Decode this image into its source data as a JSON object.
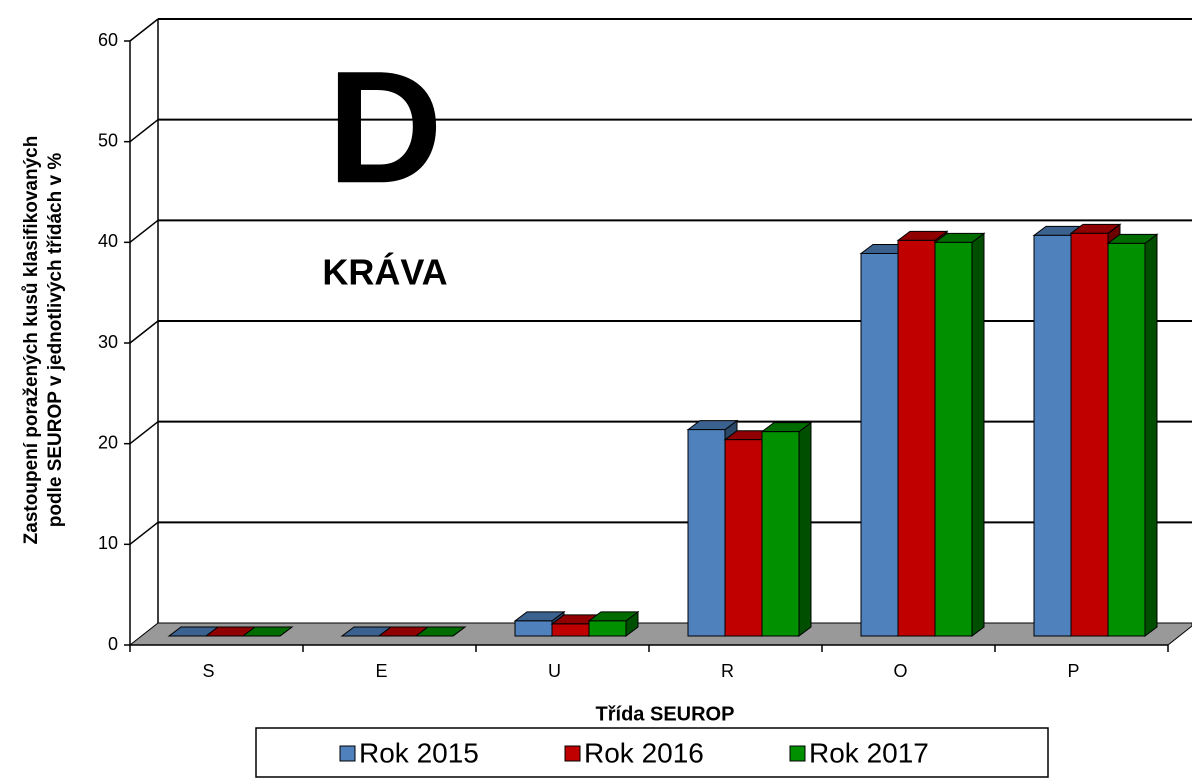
{
  "chart_data": {
    "type": "bar3d",
    "x_label": "Třída SEUROP",
    "y_label": [
      "Zastoupení poražených kusů klasifikovaných",
      "podle SEUROP v jednotlivých třídách v %"
    ],
    "annotations": [
      "D",
      "KRÁVA"
    ],
    "categories": [
      "S",
      "E",
      "U",
      "R",
      "O",
      "P"
    ],
    "series": [
      {
        "name": "Rok 2015",
        "color": "#4f81bd",
        "values": [
          0,
          0,
          1.5,
          20.5,
          38,
          39.8
        ]
      },
      {
        "name": "Rok 2016",
        "color": "#c00000",
        "values": [
          0,
          0,
          1.2,
          19.5,
          39.3,
          40
        ]
      },
      {
        "name": "Rok 2017",
        "color": "#009000",
        "values": [
          0,
          0,
          1.5,
          20.3,
          39.1,
          39
        ]
      }
    ],
    "ylim": [
      0,
      60
    ],
    "yticks": [
      0,
      10,
      20,
      30,
      40,
      50,
      60
    ],
    "grid": true,
    "legend": "bottom"
  }
}
